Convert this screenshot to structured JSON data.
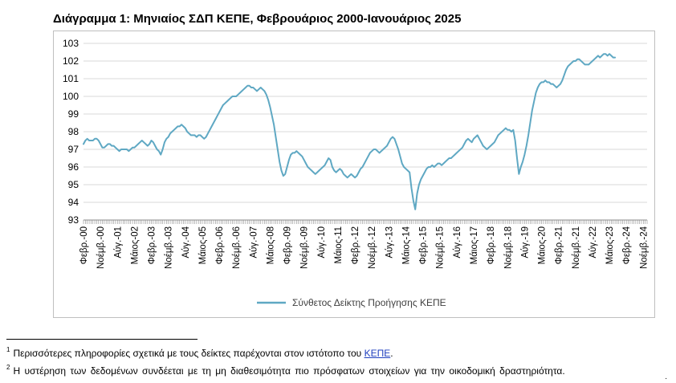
{
  "page": {
    "title": "Διάγραμμα 1: Μηνιαίος ΣΔΠ ΚΕΠΕ, Φεβρουάριος 2000-Ιανουάριος 2025"
  },
  "footnotes": {
    "fn1_mark": "1",
    "fn1_text": "Περισσότερες πληροφορίες σχετικά με τους δείκτες παρέχονται στον ιστότοπο του ",
    "fn1_link": "ΚΕΠΕ",
    "fn1_end": ".",
    "fn2_mark": "2",
    "fn2_text": "Η υστέρηση των δεδομένων συνδέεται με τη μη διαθεσιμότητα πιο πρόσφατων στοιχείων για την οικοδομική δραστηριότητα.",
    "corner_mark": "·"
  },
  "chart_data": {
    "type": "line",
    "title": "Διάγραμμα 1: Μηνιαίος ΣΔΠ ΚΕΠΕ, Φεβρουάριος 2000-Ιανουάριος 2025",
    "xlabel": "",
    "ylabel": "",
    "ylim": [
      93,
      103
    ],
    "yticks": [
      93,
      94,
      95,
      96,
      97,
      98,
      99,
      100,
      101,
      102,
      103
    ],
    "grid": "horizontal",
    "legend_position": "bottom-center",
    "line_color": "#5fa8c3",
    "x_start": "2000-02",
    "x_end": "2025-01",
    "x_tick_labels": [
      "Φεβρ.-00",
      "Νοέμβ.-00",
      "Αύγ.-01",
      "Μάιος-02",
      "Φεβρ.-03",
      "Νοέμβ.-03",
      "Αύγ.-04",
      "Μάιος-05",
      "Φεβρ.-06",
      "Νοέμβ.-06",
      "Αύγ.-07",
      "Μάιος-08",
      "Φεβρ.-09",
      "Νοέμβ.-09",
      "Αύγ.-10",
      "Μάιος-11",
      "Φεβρ.-12",
      "Νοέμβ.-12",
      "Αύγ.-13",
      "Μάιος-14",
      "Φεβρ.-15",
      "Νοέμβ.-15",
      "Αύγ.-16",
      "Μάιος-17",
      "Φεβρ.-18",
      "Νοέμβ.-18",
      "Αύγ.-19",
      "Μάιος-20",
      "Φεβρ.-21",
      "Νοέμβ.-21",
      "Αύγ.-22",
      "Μάιος-23",
      "Φεβρ.-24",
      "Νοέμβ.-24"
    ],
    "series": [
      {
        "name": "Σύνθετος Δείκτης Προήγησης ΚΕΠΕ",
        "values": [
          97.3,
          97.5,
          97.6,
          97.5,
          97.5,
          97.5,
          97.6,
          97.6,
          97.5,
          97.3,
          97.1,
          97.1,
          97.2,
          97.3,
          97.3,
          97.2,
          97.2,
          97.1,
          97.0,
          96.9,
          97.0,
          97.0,
          97.0,
          97.0,
          96.9,
          97.0,
          97.1,
          97.1,
          97.2,
          97.3,
          97.4,
          97.5,
          97.4,
          97.3,
          97.2,
          97.3,
          97.5,
          97.4,
          97.2,
          97.0,
          96.9,
          96.7,
          97.0,
          97.4,
          97.6,
          97.7,
          97.9,
          98.0,
          98.1,
          98.2,
          98.3,
          98.3,
          98.4,
          98.3,
          98.2,
          98.0,
          97.9,
          97.8,
          97.8,
          97.8,
          97.7,
          97.8,
          97.8,
          97.7,
          97.6,
          97.7,
          97.9,
          98.1,
          98.3,
          98.5,
          98.7,
          98.9,
          99.1,
          99.3,
          99.5,
          99.6,
          99.7,
          99.8,
          99.9,
          100.0,
          100.0,
          100.0,
          100.1,
          100.2,
          100.3,
          100.4,
          100.5,
          100.6,
          100.6,
          100.5,
          100.5,
          100.4,
          100.3,
          100.4,
          100.5,
          100.4,
          100.3,
          100.1,
          99.8,
          99.4,
          98.9,
          98.4,
          97.7,
          97.0,
          96.3,
          95.8,
          95.5,
          95.6,
          96.0,
          96.4,
          96.7,
          96.8,
          96.8,
          96.9,
          96.8,
          96.7,
          96.6,
          96.4,
          96.2,
          96.0,
          95.9,
          95.8,
          95.7,
          95.6,
          95.7,
          95.8,
          95.9,
          96.0,
          96.1,
          96.3,
          96.5,
          96.4,
          96.0,
          95.8,
          95.7,
          95.8,
          95.9,
          95.8,
          95.6,
          95.5,
          95.4,
          95.5,
          95.6,
          95.5,
          95.4,
          95.5,
          95.7,
          95.9,
          96.0,
          96.2,
          96.4,
          96.6,
          96.8,
          96.9,
          97.0,
          97.0,
          96.9,
          96.8,
          96.9,
          97.0,
          97.1,
          97.2,
          97.4,
          97.6,
          97.7,
          97.6,
          97.3,
          97.0,
          96.6,
          96.2,
          96.0,
          95.9,
          95.8,
          95.7,
          94.8,
          94.1,
          93.6,
          94.5,
          95.0,
          95.3,
          95.5,
          95.7,
          95.9,
          96.0,
          96.0,
          96.1,
          96.0,
          96.1,
          96.2,
          96.2,
          96.1,
          96.2,
          96.3,
          96.4,
          96.5,
          96.5,
          96.6,
          96.7,
          96.8,
          96.9,
          97.0,
          97.1,
          97.3,
          97.5,
          97.6,
          97.5,
          97.4,
          97.6,
          97.7,
          97.8,
          97.6,
          97.4,
          97.2,
          97.1,
          97.0,
          97.1,
          97.2,
          97.3,
          97.4,
          97.6,
          97.8,
          97.9,
          98.0,
          98.1,
          98.2,
          98.1,
          98.1,
          98.0,
          98.1,
          97.5,
          96.5,
          95.6,
          96.0,
          96.3,
          96.7,
          97.2,
          97.8,
          98.5,
          99.2,
          99.7,
          100.2,
          100.5,
          100.7,
          100.8,
          100.8,
          100.9,
          100.8,
          100.8,
          100.7,
          100.7,
          100.6,
          100.5,
          100.6,
          100.7,
          100.9,
          101.2,
          101.5,
          101.7,
          101.8,
          101.9,
          102.0,
          102.0,
          102.1,
          102.1,
          102.0,
          101.9,
          101.8,
          101.8,
          101.8,
          101.9,
          102.0,
          102.1,
          102.2,
          102.3,
          102.2,
          102.3,
          102.4,
          102.4,
          102.3,
          102.4,
          102.3,
          102.2,
          102.2
        ]
      }
    ]
  }
}
